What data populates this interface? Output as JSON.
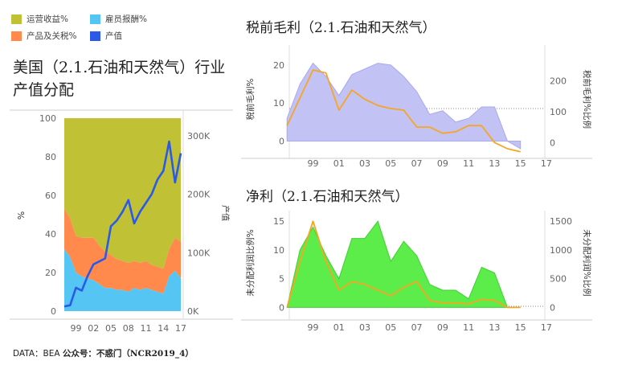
{
  "legend": [
    {
      "label": "运营收益%",
      "color": "#c1c136"
    },
    {
      "label": "雇员报酬%",
      "color": "#55c6f4"
    },
    {
      "label": "产品及关税%",
      "color": "#ff8a4c"
    },
    {
      "label": "产值",
      "color": "#2b59e8"
    }
  ],
  "left_title": "美国（2.1.石油和天然气）行业产值分配",
  "footer": {
    "source": "DATA：BEA",
    "account": "公众号：不惑门（NCR2019_4）"
  },
  "chart_data": [
    {
      "type": "area",
      "id": "left",
      "x": [
        1997,
        1998,
        1999,
        2000,
        2001,
        2002,
        2003,
        2004,
        2005,
        2006,
        2007,
        2008,
        2009,
        2010,
        2011,
        2012,
        2013,
        2014,
        2015,
        2016,
        2017
      ],
      "series": [
        {
          "name": "雇员报酬%",
          "values": [
            32,
            28,
            20,
            18,
            17,
            16,
            14,
            12,
            12,
            11,
            11,
            10,
            12,
            11,
            12,
            11,
            10,
            9,
            18,
            21,
            17
          ]
        },
        {
          "name": "产品及关税%",
          "values": [
            21,
            20,
            19,
            20,
            21,
            22,
            20,
            19,
            17,
            16,
            15,
            15,
            14,
            14,
            14,
            13,
            13,
            13,
            14,
            17,
            19
          ]
        },
        {
          "name": "运营收益%",
          "values": [
            47,
            52,
            61,
            62,
            62,
            62,
            66,
            69,
            71,
            73,
            74,
            75,
            74,
            75,
            74,
            76,
            77,
            78,
            68,
            62,
            64
          ]
        }
      ],
      "line": {
        "name": "产值",
        "values": [
          8,
          10,
          40,
          35,
          60,
          80,
          85,
          90,
          145,
          155,
          170,
          190,
          150,
          170,
          185,
          200,
          225,
          240,
          290,
          220,
          270
        ]
      },
      "xticks": [
        "99",
        "02",
        "05",
        "08",
        "11",
        "14",
        "17"
      ],
      "y_left": {
        "label": "%",
        "range": [
          0,
          100
        ],
        "ticks": [
          "0",
          "20",
          "40",
          "60",
          "80",
          "100"
        ]
      },
      "y_right": {
        "label": "产值",
        "range": [
          0,
          330
        ],
        "ticks": [
          "0K",
          "100K",
          "200K",
          "300K"
        ]
      }
    },
    {
      "type": "area",
      "id": "gross",
      "title": "税前毛利（2.1.石油和天然气）",
      "x": [
        1997,
        1998,
        1999,
        2000,
        2001,
        2002,
        2003,
        2004,
        2005,
        2006,
        2007,
        2008,
        2009,
        2010,
        2011,
        2012,
        2013,
        2014,
        2015
      ],
      "area": {
        "name": "税前毛利%",
        "values": [
          6,
          15,
          20.5,
          17,
          12,
          17.5,
          19,
          20.5,
          20,
          17,
          13,
          7,
          8,
          5,
          6,
          9,
          9,
          0,
          -2
        ]
      },
      "line": {
        "name": "税前毛利%比例",
        "values": [
          55,
          235,
          225,
          105,
          170,
          140,
          120,
          110,
          105,
          50,
          50,
          30,
          35,
          55,
          55,
          0,
          -20,
          -30,
          -30
        ]
      },
      "line_x": [
        1997,
        1999,
        2000,
        2001,
        2002,
        2003,
        2004,
        2005,
        2006,
        2007,
        2008,
        2009,
        2010,
        2011,
        2012,
        2013,
        2014,
        2015,
        2015
      ],
      "xticks": [
        "99",
        "01",
        "03",
        "05",
        "07",
        "09",
        "11",
        "13",
        "15",
        "17"
      ],
      "y_left": {
        "label": "税前毛利%",
        "range": [
          -2,
          24
        ],
        "ticks": [
          "0",
          "10",
          "20"
        ]
      },
      "y_right": {
        "label": "税前毛利%比例",
        "range": [
          -20,
          300
        ],
        "ticks": [
          "0",
          "100",
          "200"
        ]
      }
    },
    {
      "type": "area",
      "id": "net",
      "title": "净利（2.1.石油和天然气）",
      "x": [
        1997,
        1998,
        1999,
        2000,
        2001,
        2002,
        2003,
        2004,
        2005,
        2006,
        2007,
        2008,
        2009,
        2010,
        2011,
        2012,
        2013,
        2014,
        2015
      ],
      "area": {
        "name": "未分配利润比例%",
        "values": [
          0,
          10,
          14,
          9,
          5,
          12,
          12,
          15,
          8,
          11.5,
          9,
          4,
          3,
          3,
          1.5,
          7,
          6,
          0,
          0
        ]
      },
      "line": {
        "name": "未分配利润%比例",
        "values": [
          0,
          800,
          1500,
          800,
          300,
          450,
          400,
          300,
          200,
          350,
          450,
          120,
          80,
          80,
          60,
          140,
          120,
          0,
          0
        ]
      },
      "xticks": [
        "99",
        "01",
        "03",
        "05",
        "07",
        "09",
        "11",
        "13",
        "15",
        "17"
      ],
      "y_left": {
        "label": "未分配利润比例%",
        "range": [
          -0.5,
          16
        ],
        "ticks": [
          "0",
          "5",
          "10",
          "15"
        ]
      },
      "y_right": {
        "label": "未分配利润%比例",
        "range": [
          -50,
          1600
        ],
        "ticks": [
          "0",
          "500",
          "1000",
          "1500"
        ]
      }
    }
  ]
}
